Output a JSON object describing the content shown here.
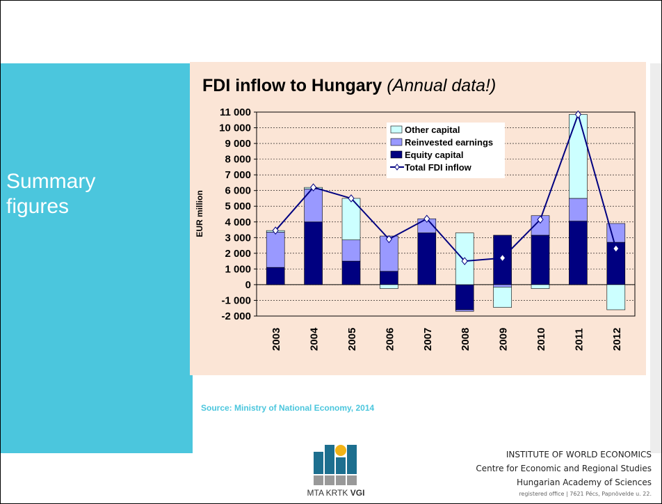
{
  "slide": {
    "heading": "Summary figures",
    "source": "Source: Ministry of National Economy, 2014",
    "logo": {
      "left": "MTA KRTK",
      "right": "VGI"
    },
    "institute": [
      "INSTITUTE OF WORLD ECONOMICS",
      "Centre for Economic and Regional Studies",
      "Hungarian Academy of Sciences",
      "registered office | 7621 Pécs, Papnövelde u. 22."
    ]
  },
  "chart_data": {
    "type": "bar",
    "stacked": true,
    "title": "FDI inflow to Hungary",
    "subtitle": "(Annual data!)",
    "y_label": "EUR million",
    "categories": [
      "2003",
      "2004",
      "2005",
      "2006",
      "2007",
      "2008",
      "2009",
      "2010",
      "2011",
      "2012"
    ],
    "series": [
      {
        "name": "Other capital",
        "color": "#ccffff",
        "values": [
          100,
          100,
          2650,
          -250,
          0,
          3300,
          -1300,
          -250,
          5350,
          -1600
        ]
      },
      {
        "name": "Reinvested earnings",
        "color": "#9999ff",
        "values": [
          2250,
          2100,
          1350,
          2250,
          900,
          -100,
          -150,
          1250,
          1450,
          1200
        ]
      },
      {
        "name": "Equity capital",
        "color": "#000080",
        "values": [
          1100,
          4000,
          1500,
          850,
          3300,
          -1600,
          3150,
          3150,
          4050,
          2700
        ]
      },
      {
        "name": "Total FDI inflow",
        "type": "line",
        "color": "#000080",
        "values": [
          3450,
          6200,
          5500,
          2900,
          4200,
          1500,
          1700,
          4150,
          10850,
          2300
        ]
      }
    ],
    "ylim": [
      -2000,
      11000
    ],
    "yticks": [
      {
        "value": -2000,
        "label": "-2 000"
      },
      {
        "value": -1000,
        "label": "-1 000"
      },
      0,
      {
        "value": 1000,
        "label": "1 000"
      },
      {
        "value": 2000,
        "label": "2 000"
      },
      {
        "value": 3000,
        "label": "3 000"
      },
      {
        "value": 4000,
        "label": "4 000"
      },
      {
        "value": 5000,
        "label": "5 000"
      },
      {
        "value": 6000,
        "label": "6 000"
      },
      {
        "value": 7000,
        "label": "7 000"
      },
      {
        "value": 8000,
        "label": "8 000"
      },
      {
        "value": 9000,
        "label": "9 000"
      },
      {
        "value": 10000,
        "label": "10 000"
      },
      {
        "value": 11000,
        "label": "11 000"
      }
    ],
    "grid": true
  }
}
